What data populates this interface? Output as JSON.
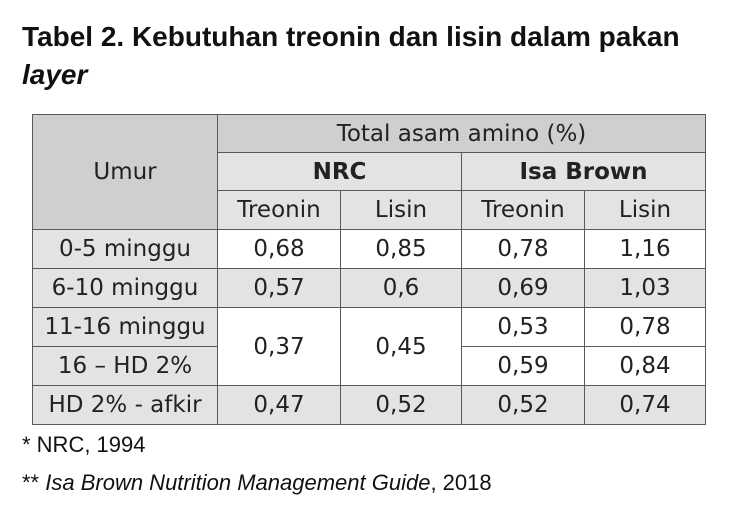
{
  "title": {
    "line1": "Tabel 2. Kebutuhan treonin dan lisin dalam pakan",
    "line2": "layer"
  },
  "table": {
    "header_umur": "Umur",
    "header_total": "Total asam amino (%)",
    "group_nrc": "NRC",
    "group_isa": "Isa Brown",
    "col_treonin": "Treonin",
    "col_lisin": "Lisin",
    "rows": [
      {
        "umur": "0-5 minggu",
        "nrc_treonin": "0,68",
        "nrc_lisin": "0,85",
        "isa_treonin": "0,78",
        "isa_lisin": "1,16"
      },
      {
        "umur": "6-10 minggu",
        "nrc_treonin": "0,57",
        "nrc_lisin": "0,6",
        "isa_treonin": "0,69",
        "isa_lisin": "1,03"
      },
      {
        "umur": "11-16 minggu",
        "nrc_treonin": "0,37",
        "nrc_lisin": "0,45",
        "isa_treonin": "0,53",
        "isa_lisin": "0,78"
      },
      {
        "umur": "16 – HD 2%",
        "isa_treonin": "0,59",
        "isa_lisin": "0,84"
      },
      {
        "umur": "HD 2% - afkir",
        "nrc_treonin": "0,47",
        "nrc_lisin": "0,52",
        "isa_treonin": "0,52",
        "isa_lisin": "0,74"
      }
    ]
  },
  "footnotes": {
    "note1": "* NRC, 1994",
    "note2_prefix": "** ",
    "note2_title": "Isa Brown Nutrition Management Guide",
    "note2_suffix": ", 2018"
  }
}
